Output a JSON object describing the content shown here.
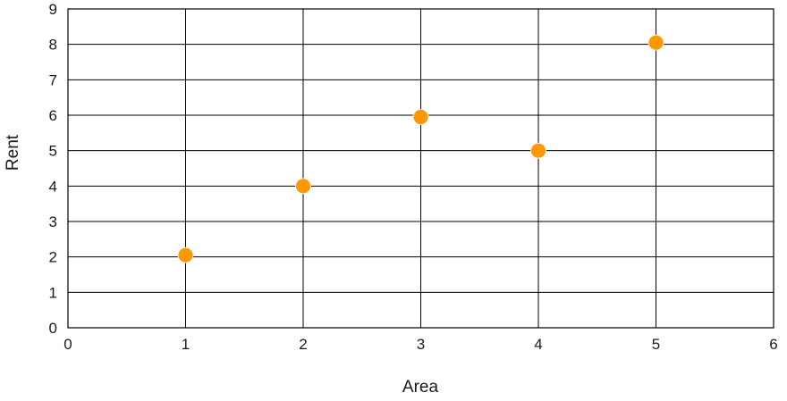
{
  "chart_data": {
    "type": "scatter",
    "title": "",
    "xlabel": "Area",
    "ylabel": "Rent",
    "xlim": [
      0,
      6
    ],
    "ylim": [
      0,
      9
    ],
    "x_ticks": [
      "0",
      "1",
      "2",
      "3",
      "4",
      "5",
      "6"
    ],
    "y_ticks": [
      "0",
      "1",
      "2",
      "3",
      "4",
      "5",
      "6",
      "7",
      "8",
      "9"
    ],
    "grid": true,
    "legend": "none",
    "series": [
      {
        "color": "#FF9800",
        "points": [
          {
            "x": 1,
            "y": 2.05
          },
          {
            "x": 2,
            "y": 4.0
          },
          {
            "x": 3,
            "y": 5.95
          },
          {
            "x": 4,
            "y": 5.0
          },
          {
            "x": 5,
            "y": 8.05
          }
        ]
      }
    ]
  }
}
